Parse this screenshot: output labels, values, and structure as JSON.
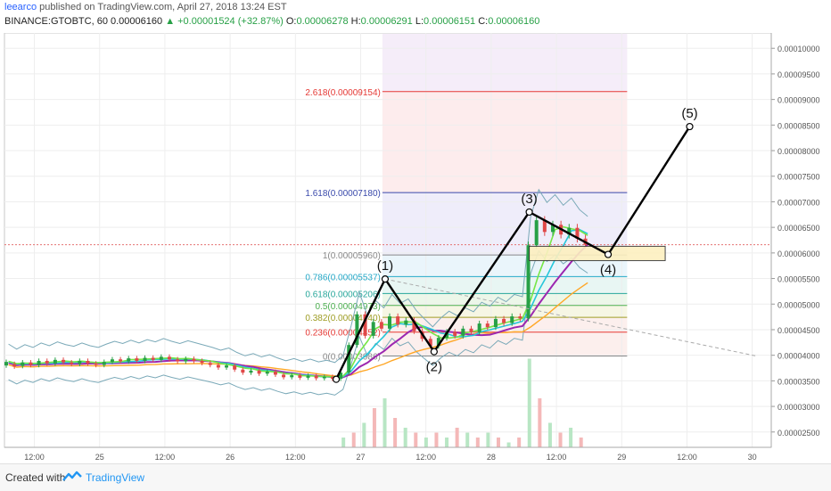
{
  "header": {
    "author": "leearco",
    "published": "published on TradingView.com, April 27, 2018 13:24 EST",
    "symbol": "BINANCE:GTOBTC, 60",
    "last": "0.00006160",
    "change": "▲ +0.00001524 (+32.87%)",
    "o_label": "O:",
    "o_value": "0.00006278",
    "h_label": "H:",
    "h_value": "0.00006291",
    "l_label": "L:",
    "l_value": "0.00006151",
    "c_label": "C:",
    "c_value": "0.00006160"
  },
  "footer": {
    "created_with": "Created with",
    "brand": "TradingView"
  },
  "colors": {
    "up": "#27a046",
    "down": "#e04848",
    "wave": "#000000",
    "ma_purple": "#9c27b0",
    "ma_green": "#76e646",
    "ma_cyan": "#26c6da",
    "ma_orange": "#ffa726",
    "bollinger": "#7aa9b8"
  },
  "chart_data": {
    "type": "line",
    "instrument": "BINANCE:GTOBTC, 60",
    "x_ticks": [
      "12:00",
      "25",
      "12:00",
      "26",
      "12:00",
      "27",
      "12:00",
      "28",
      "12:00",
      "29",
      "12:00",
      "30"
    ],
    "y_ticks": [
      "0.00010000",
      "0.00009500",
      "0.00009000",
      "0.00008500",
      "0.00008000",
      "0.00007500",
      "0.00007000",
      "0.00006500",
      "0.00006000",
      "0.00005500",
      "0.00005000",
      "0.00004500",
      "0.00004000",
      "0.00003500",
      "0.00003000",
      "0.00002500"
    ],
    "ylim": [
      2.2e-05,
      0.000103
    ],
    "fibonacci": [
      {
        "label": "2.618(0.00009154)",
        "level": 9.154e-05,
        "color": "#e53935"
      },
      {
        "label": "1.618(0.00007180)",
        "level": 7.18e-05,
        "color": "#3949ab"
      },
      {
        "label": "1(0.00005960)",
        "level": 5.96e-05,
        "color": "#888888"
      },
      {
        "label": "0.786(0.00005537)",
        "level": 5.537e-05,
        "color": "#26a9c8"
      },
      {
        "label": "0.618(0.00005206)",
        "level": 5.206e-05,
        "color": "#26a69a"
      },
      {
        "label": "0.5(0.00004973)",
        "level": 4.973e-05,
        "color": "#4caf50"
      },
      {
        "label": "0.382(0.00004740)",
        "level": 4.74e-05,
        "color": "#9e9d24"
      },
      {
        "label": "0.236(0.00004452)",
        "level": 4.452e-05,
        "color": "#e53935"
      },
      {
        "label": "0(0.00003986)",
        "level": 3.986e-05,
        "color": "#888888"
      }
    ],
    "elliott_wave": [
      {
        "label": "",
        "t": 12.2,
        "price": 3.53e-05
      },
      {
        "label": "(1)",
        "t": 14.0,
        "price": 5.49e-05
      },
      {
        "label": "(2)",
        "t": 15.8,
        "price": 4.07e-05
      },
      {
        "label": "(3)",
        "t": 19.3,
        "price": 6.8e-05
      },
      {
        "label": "(4)",
        "t": 22.2,
        "price": 5.97e-05
      },
      {
        "label": "(5)",
        "t": 25.2,
        "price": 8.47e-05
      }
    ],
    "last_price": 6.16e-05,
    "candles_approx": [
      [
        0.0,
        3.8e-05,
        3.87e-05
      ],
      [
        0.3,
        3.83e-05,
        3.78e-05
      ],
      [
        0.6,
        3.79e-05,
        3.86e-05
      ],
      [
        0.9,
        3.86e-05,
        3.81e-05
      ],
      [
        1.2,
        3.81e-05,
        3.89e-05
      ],
      [
        1.5,
        3.89e-05,
        3.84e-05
      ],
      [
        1.8,
        3.84e-05,
        3.91e-05
      ],
      [
        2.1,
        3.91e-05,
        3.86e-05
      ],
      [
        2.4,
        3.86e-05,
        3.83e-05
      ],
      [
        2.7,
        3.83e-05,
        3.89e-05
      ],
      [
        3.0,
        3.89e-05,
        3.84e-05
      ],
      [
        3.3,
        3.84e-05,
        3.81e-05
      ],
      [
        3.6,
        3.81e-05,
        3.87e-05
      ],
      [
        3.9,
        3.87e-05,
        3.92e-05
      ],
      [
        4.2,
        3.92e-05,
        3.88e-05
      ],
      [
        4.5,
        3.88e-05,
        3.94e-05
      ],
      [
        4.8,
        3.94e-05,
        3.89e-05
      ],
      [
        5.1,
        3.89e-05,
        3.95e-05
      ],
      [
        5.4,
        3.95e-05,
        3.91e-05
      ],
      [
        5.7,
        3.91e-05,
        3.97e-05
      ],
      [
        6.0,
        3.97e-05,
        3.92e-05
      ],
      [
        6.3,
        3.92e-05,
        3.88e-05
      ],
      [
        6.6,
        3.88e-05,
        3.93e-05
      ],
      [
        6.9,
        3.93e-05,
        3.89e-05
      ],
      [
        7.2,
        3.89e-05,
        3.85e-05
      ],
      [
        7.5,
        3.85e-05,
        3.81e-05
      ],
      [
        7.8,
        3.81e-05,
        3.76e-05
      ],
      [
        8.1,
        3.76e-05,
        3.8e-05
      ],
      [
        8.4,
        3.8e-05,
        3.72e-05
      ],
      [
        8.7,
        3.72e-05,
        3.66e-05
      ],
      [
        9.0,
        3.66e-05,
        3.7e-05
      ],
      [
        9.3,
        3.7e-05,
        3.64e-05
      ],
      [
        9.6,
        3.64e-05,
        3.68e-05
      ],
      [
        9.9,
        3.68e-05,
        3.62e-05
      ],
      [
        10.2,
        3.62e-05,
        3.57e-05
      ],
      [
        10.5,
        3.57e-05,
        3.61e-05
      ],
      [
        10.8,
        3.61e-05,
        3.56e-05
      ],
      [
        11.1,
        3.56e-05,
        3.6e-05
      ],
      [
        11.4,
        3.6e-05,
        3.55e-05
      ],
      [
        11.7,
        3.55e-05,
        3.58e-05
      ],
      [
        12.0,
        3.58e-05,
        3.54e-05
      ],
      [
        12.3,
        3.54e-05,
        3.66e-05
      ],
      [
        12.6,
        3.66e-05,
        4.2e-05
      ],
      [
        12.9,
        4.2e-05,
        4.8e-05
      ],
      [
        13.2,
        4.8e-05,
        4.38e-05
      ],
      [
        13.5,
        4.38e-05,
        4.65e-05
      ],
      [
        13.8,
        4.65e-05,
        4.52e-05
      ],
      [
        14.1,
        4.52e-05,
        4.76e-05
      ],
      [
        14.4,
        4.76e-05,
        4.6e-05
      ],
      [
        14.7,
        4.6e-05,
        4.68e-05
      ],
      [
        15.0,
        4.68e-05,
        4.47e-05
      ],
      [
        15.3,
        4.47e-05,
        4.32e-05
      ],
      [
        15.6,
        4.32e-05,
        4.18e-05
      ],
      [
        15.9,
        4.18e-05,
        4.34e-05
      ],
      [
        16.2,
        4.34e-05,
        4.46e-05
      ],
      [
        16.5,
        4.46e-05,
        4.38e-05
      ],
      [
        16.8,
        4.38e-05,
        4.52e-05
      ],
      [
        17.1,
        4.52e-05,
        4.45e-05
      ],
      [
        17.4,
        4.45e-05,
        4.62e-05
      ],
      [
        17.7,
        4.62e-05,
        4.55e-05
      ],
      [
        18.0,
        4.55e-05,
        4.71e-05
      ],
      [
        18.3,
        4.71e-05,
        4.63e-05
      ],
      [
        18.6,
        4.63e-05,
        4.76e-05
      ],
      [
        18.9,
        4.76e-05,
        4.72e-05
      ],
      [
        19.2,
        4.72e-05,
        6.15e-05
      ],
      [
        19.5,
        6.15e-05,
        6.64e-05
      ],
      [
        19.8,
        6.64e-05,
        6.41e-05
      ],
      [
        20.1,
        6.41e-05,
        6.55e-05
      ],
      [
        20.4,
        6.55e-05,
        6.36e-05
      ],
      [
        20.7,
        6.36e-05,
        6.49e-05
      ],
      [
        21.0,
        6.49e-05,
        6.28e-05
      ],
      [
        21.3,
        6.28e-05,
        6.16e-05
      ]
    ]
  }
}
